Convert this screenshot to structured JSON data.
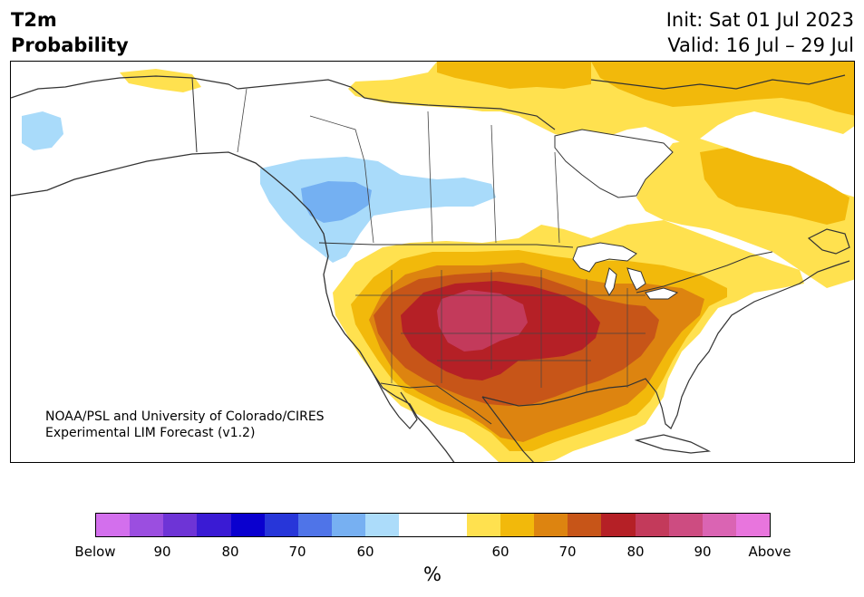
{
  "header": {
    "title_line1": "T2m",
    "title_line2": "Probability",
    "init": "Init: Sat 01 Jul 2023",
    "valid": "Valid: 16 Jul – 29 Jul"
  },
  "map": {
    "credit_line1": "NOAA/PSL and University of Colorado/CIRES",
    "credit_line2": "Experimental LIM Forecast (v1.2)",
    "colors": {
      "below_60": "#a9dbfa",
      "below_70": "#74b0f2",
      "above_60": "#ffe14f",
      "above_65": "#f2b90b",
      "above_70": "#dd8410",
      "above_75": "#c75518",
      "above_80": "#b52026",
      "above_85": "#c33a5b"
    }
  },
  "colorbar": {
    "colors": [
      "#d36fed",
      "#9b4ee0",
      "#6e34d6",
      "#3a1bd4",
      "#0a00cf",
      "#2736d9",
      "#4f74e8",
      "#77b0f2",
      "#acdcfa",
      "#ffffff",
      "#ffffff",
      "#ffe14f",
      "#f2b90b",
      "#dd8410",
      "#c75518",
      "#b52026",
      "#c33a5b",
      "#cd4c81",
      "#da64b3",
      "#e875dd"
    ],
    "tick_labels": [
      "Below",
      "90",
      "80",
      "70",
      "60",
      "60",
      "70",
      "80",
      "90",
      "Above"
    ],
    "unit": "%"
  }
}
